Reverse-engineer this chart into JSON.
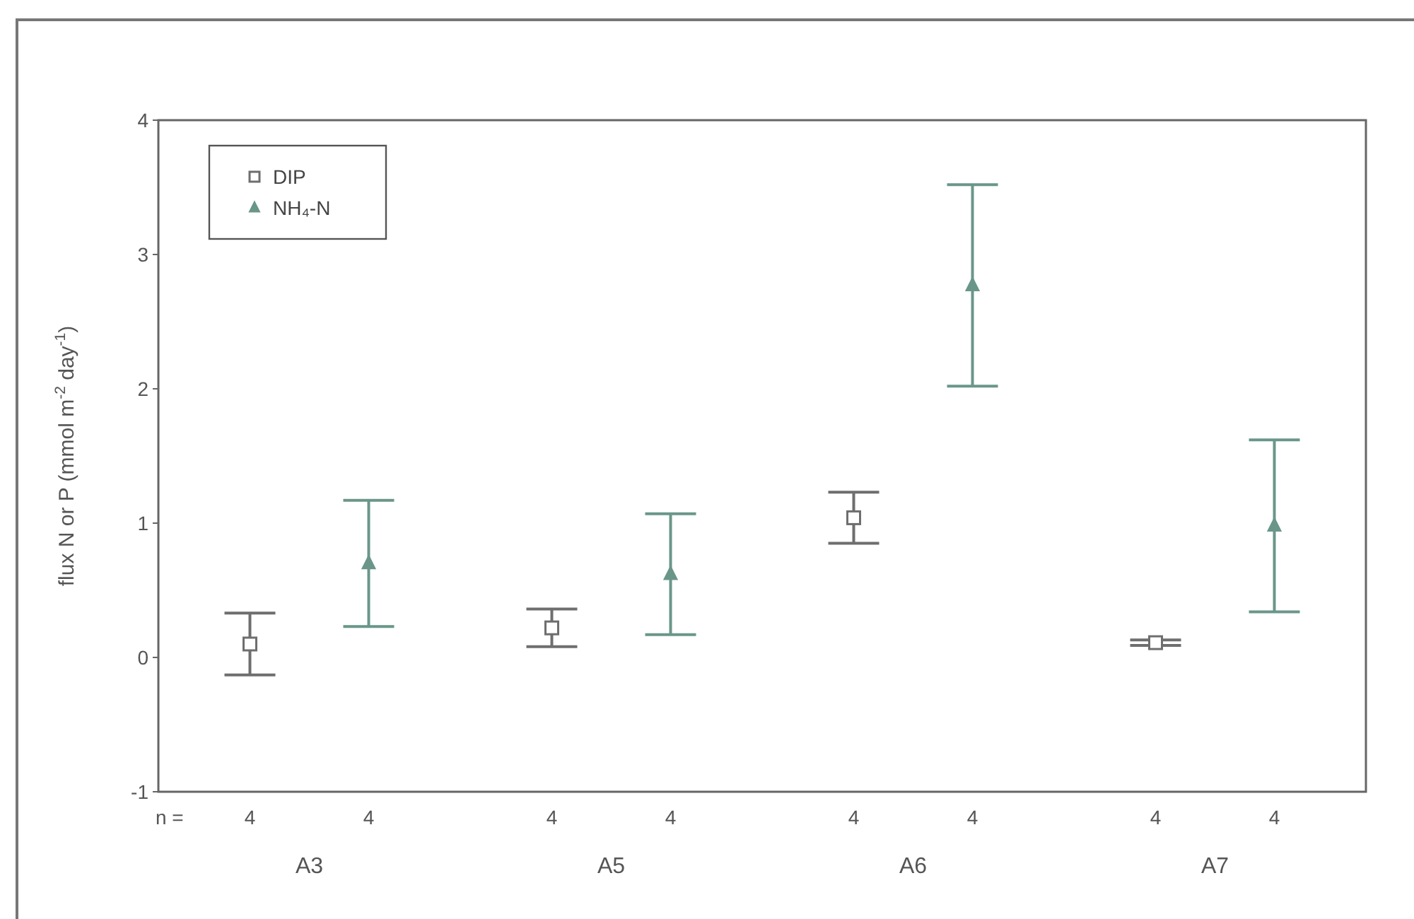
{
  "chart_data": {
    "type": "scatter",
    "ylabel": "flux N or P (mmol m$^{-2}$ day$^{-1}$)",
    "categories": [
      "A3",
      "A5",
      "A6",
      "A7"
    ],
    "series": [
      {
        "name": "DIP",
        "color": "#6e6e6e",
        "marker": "square",
        "values": [
          0.1,
          0.22,
          1.04,
          0.11
        ],
        "errors": [
          0.23,
          0.14,
          0.19,
          0.02
        ]
      },
      {
        "name": "NH₄-N",
        "color": "#6a968a",
        "marker": "triangle",
        "values": [
          0.7,
          0.62,
          2.77,
          0.98
        ],
        "errors": [
          0.47,
          0.45,
          0.75,
          0.64
        ]
      }
    ],
    "ylim": [
      -1,
      4
    ],
    "yticks": [
      -1,
      0,
      1,
      2,
      3,
      4
    ],
    "legend": "top left",
    "annotations": [
      "n =",
      "4",
      "4",
      "4",
      "4",
      "4",
      "4",
      "4",
      "4"
    ]
  }
}
